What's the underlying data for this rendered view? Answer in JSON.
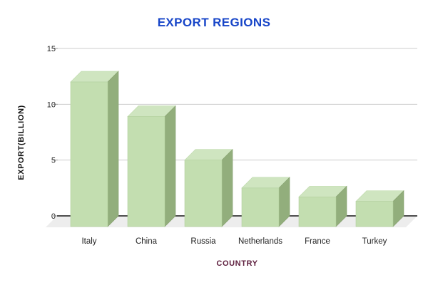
{
  "chart_data": {
    "type": "bar",
    "variant": "3d-column",
    "title": "EXPORT REGIONS",
    "xlabel": "COUNTRY",
    "ylabel": "EXPORT(BILLION)",
    "categories": [
      "Italy",
      "China",
      "Russia",
      "Netherlands",
      "France",
      "Turkey"
    ],
    "values": [
      12,
      8.9,
      5,
      2.5,
      1.7,
      1.3
    ],
    "ylim": [
      0,
      15
    ],
    "yticks": [
      0,
      5,
      10,
      15
    ],
    "grid": true,
    "legend": "none",
    "colors": {
      "background": "#ffffff",
      "title": "#1745c8",
      "xlabel": "#5e1f3e",
      "ylabel": "#141414",
      "tick_label": "#222222",
      "gridline": "#cccccc",
      "tick_mark": "#999999",
      "axis_line": "#4d4d4d",
      "floor": "#ededed",
      "bar_front": "#c3deb0",
      "bar_top": "#cfe5c0",
      "bar_side": "#92ae7c"
    }
  }
}
